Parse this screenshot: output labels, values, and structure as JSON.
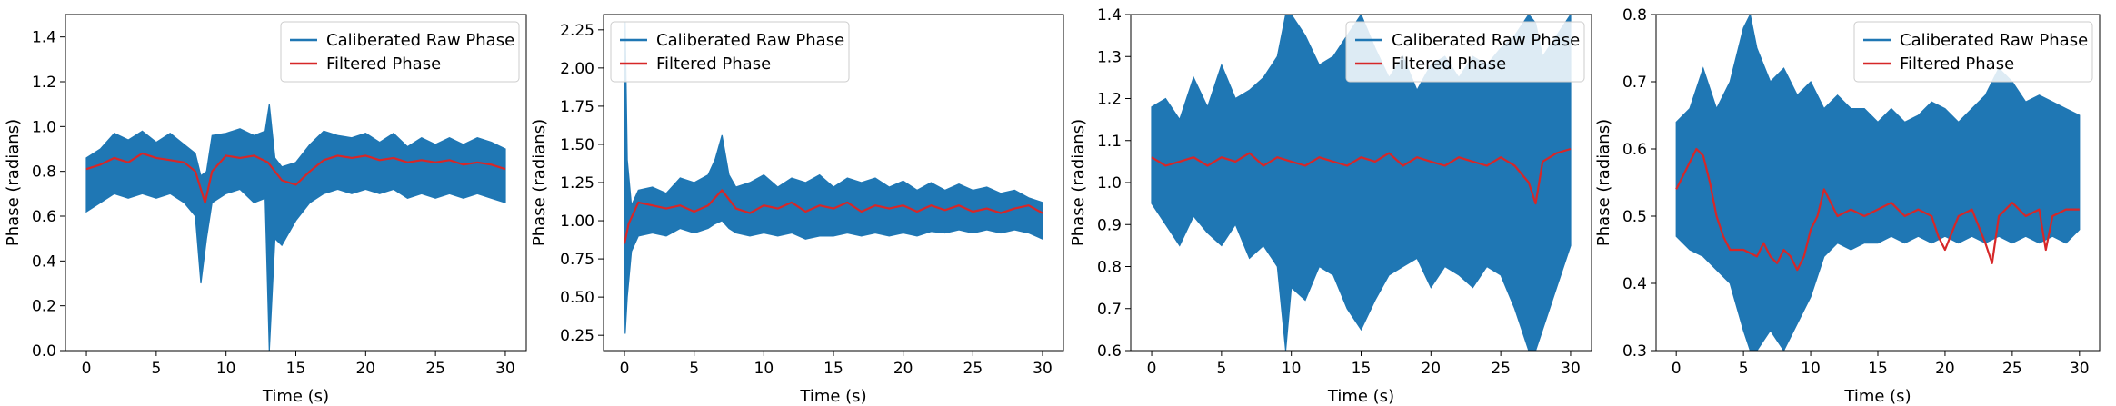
{
  "chart_data": [
    {
      "type": "line",
      "xlabel": "Time (s)",
      "ylabel": "Phase (radians)",
      "xlim": [
        -1.5,
        31.5
      ],
      "ylim": [
        0.0,
        1.5
      ],
      "xticks": [
        0,
        5,
        10,
        15,
        20,
        25,
        30
      ],
      "yticks": [
        0.0,
        0.2,
        0.4,
        0.6,
        0.8,
        1.0,
        1.2,
        1.4
      ],
      "ytick_labels": [
        "0.0",
        "0.2",
        "0.4",
        "0.6",
        "0.8",
        "1.0",
        "1.2",
        "1.4"
      ],
      "legend": {
        "placement": "top-right",
        "entries": [
          "Caliberated Raw Phase",
          "Filtered Phase"
        ]
      },
      "series": [
        {
          "name": "Caliberated Raw Phase",
          "color": "#1f77b4",
          "kind": "band",
          "x": [
            0,
            1,
            2,
            3,
            4,
            5,
            6,
            7,
            7.8,
            8.2,
            8.6,
            9,
            10,
            11,
            12,
            12.8,
            13.1,
            13.5,
            14,
            15,
            16,
            17,
            18,
            19,
            20,
            21,
            22,
            23,
            24,
            25,
            26,
            27,
            28,
            29,
            30
          ],
          "upper": [
            0.86,
            0.9,
            0.97,
            0.94,
            0.98,
            0.93,
            0.97,
            0.92,
            0.88,
            0.78,
            0.8,
            0.96,
            0.97,
            0.99,
            0.96,
            0.98,
            1.1,
            0.86,
            0.82,
            0.84,
            0.92,
            0.98,
            0.96,
            0.95,
            0.97,
            0.93,
            0.97,
            0.91,
            0.95,
            0.92,
            0.95,
            0.92,
            0.95,
            0.93,
            0.9
          ],
          "lower": [
            0.62,
            0.66,
            0.7,
            0.68,
            0.7,
            0.68,
            0.7,
            0.66,
            0.6,
            0.3,
            0.5,
            0.66,
            0.7,
            0.72,
            0.66,
            0.68,
            0.0,
            0.5,
            0.47,
            0.58,
            0.66,
            0.7,
            0.72,
            0.7,
            0.72,
            0.7,
            0.72,
            0.68,
            0.7,
            0.68,
            0.7,
            0.68,
            0.7,
            0.68,
            0.66
          ]
        },
        {
          "name": "Filtered Phase",
          "color": "#d62728",
          "kind": "line",
          "x": [
            0,
            1,
            2,
            3,
            4,
            5,
            6,
            7,
            7.8,
            8.5,
            9,
            10,
            11,
            12,
            13,
            14,
            15,
            16,
            17,
            18,
            19,
            20,
            21,
            22,
            23,
            24,
            25,
            26,
            27,
            28,
            29,
            30
          ],
          "values": [
            0.81,
            0.83,
            0.86,
            0.84,
            0.88,
            0.86,
            0.85,
            0.84,
            0.8,
            0.66,
            0.8,
            0.87,
            0.86,
            0.87,
            0.84,
            0.76,
            0.74,
            0.8,
            0.85,
            0.87,
            0.86,
            0.87,
            0.85,
            0.86,
            0.84,
            0.85,
            0.84,
            0.85,
            0.83,
            0.84,
            0.83,
            0.81
          ]
        }
      ]
    },
    {
      "type": "line",
      "xlabel": "Time (s)",
      "ylabel": "Phase (radians)",
      "xlim": [
        -1.5,
        31.5
      ],
      "ylim": [
        0.15,
        2.35
      ],
      "xticks": [
        0,
        5,
        10,
        15,
        20,
        25,
        30
      ],
      "yticks": [
        0.25,
        0.5,
        0.75,
        1.0,
        1.25,
        1.5,
        1.75,
        2.0,
        2.25
      ],
      "ytick_labels": [
        "0.25",
        "0.50",
        "0.75",
        "1.00",
        "1.25",
        "1.50",
        "1.75",
        "2.00",
        "2.25"
      ],
      "legend": {
        "placement": "top-left",
        "entries": [
          "Caliberated Raw Phase",
          "Filtered Phase"
        ]
      },
      "series": [
        {
          "name": "Caliberated Raw Phase",
          "color": "#1f77b4",
          "kind": "band",
          "x": [
            0,
            0.05,
            0.2,
            0.5,
            1,
            2,
            3,
            4,
            5,
            6,
            6.5,
            7,
            7.5,
            8,
            9,
            10,
            11,
            12,
            13,
            14,
            15,
            16,
            17,
            18,
            19,
            20,
            21,
            22,
            23,
            24,
            25,
            26,
            27,
            28,
            29,
            30
          ],
          "upper": [
            1.0,
            2.3,
            1.4,
            1.1,
            1.2,
            1.22,
            1.18,
            1.28,
            1.25,
            1.3,
            1.4,
            1.56,
            1.3,
            1.22,
            1.25,
            1.3,
            1.22,
            1.28,
            1.25,
            1.3,
            1.22,
            1.28,
            1.25,
            1.28,
            1.22,
            1.26,
            1.2,
            1.25,
            1.2,
            1.24,
            1.2,
            1.22,
            1.18,
            1.2,
            1.15,
            1.12
          ],
          "lower": [
            0.8,
            0.26,
            0.5,
            0.8,
            0.9,
            0.92,
            0.9,
            0.95,
            0.92,
            0.95,
            0.98,
            1.0,
            0.95,
            0.92,
            0.9,
            0.92,
            0.9,
            0.92,
            0.88,
            0.9,
            0.9,
            0.92,
            0.9,
            0.92,
            0.9,
            0.92,
            0.9,
            0.93,
            0.92,
            0.94,
            0.92,
            0.94,
            0.92,
            0.94,
            0.92,
            0.88
          ]
        },
        {
          "name": "Filtered Phase",
          "color": "#d62728",
          "kind": "line",
          "x": [
            0,
            0.3,
            0.7,
            1,
            2,
            3,
            4,
            5,
            6,
            7,
            8,
            9,
            10,
            11,
            12,
            13,
            14,
            15,
            16,
            17,
            18,
            19,
            20,
            21,
            22,
            23,
            24,
            25,
            26,
            27,
            28,
            29,
            30
          ],
          "values": [
            0.85,
            0.98,
            1.06,
            1.12,
            1.1,
            1.08,
            1.1,
            1.06,
            1.1,
            1.2,
            1.08,
            1.05,
            1.1,
            1.08,
            1.12,
            1.06,
            1.1,
            1.08,
            1.12,
            1.06,
            1.1,
            1.08,
            1.1,
            1.06,
            1.1,
            1.07,
            1.1,
            1.06,
            1.08,
            1.05,
            1.08,
            1.1,
            1.05
          ]
        }
      ]
    },
    {
      "type": "line",
      "xlabel": "Time (s)",
      "ylabel": "Phase (radians)",
      "xlim": [
        -1.5,
        31.5
      ],
      "ylim": [
        0.6,
        1.4
      ],
      "xticks": [
        0,
        5,
        10,
        15,
        20,
        25,
        30
      ],
      "yticks": [
        0.6,
        0.7,
        0.8,
        0.9,
        1.0,
        1.1,
        1.2,
        1.3,
        1.4
      ],
      "ytick_labels": [
        "0.6",
        "0.7",
        "0.8",
        "0.9",
        "1.0",
        "1.1",
        "1.2",
        "1.3",
        "1.4"
      ],
      "legend": {
        "placement": "top-right",
        "entries": [
          "Caliberated Raw Phase",
          "Filtered Phase"
        ]
      },
      "series": [
        {
          "name": "Caliberated Raw Phase",
          "color": "#1f77b4",
          "kind": "band",
          "x": [
            0,
            1,
            2,
            3,
            4,
            5,
            6,
            7,
            8,
            9,
            9.6,
            10,
            11,
            12,
            13,
            14,
            15,
            16,
            17,
            18,
            19,
            20,
            21,
            22,
            23,
            24,
            25,
            26,
            27,
            27.5,
            28,
            29,
            30
          ],
          "upper": [
            1.18,
            1.2,
            1.15,
            1.25,
            1.18,
            1.28,
            1.2,
            1.22,
            1.25,
            1.3,
            1.4,
            1.4,
            1.35,
            1.28,
            1.3,
            1.35,
            1.4,
            1.32,
            1.25,
            1.3,
            1.22,
            1.28,
            1.3,
            1.25,
            1.3,
            1.28,
            1.32,
            1.35,
            1.4,
            1.38,
            1.3,
            1.35,
            1.4
          ],
          "lower": [
            0.95,
            0.9,
            0.85,
            0.92,
            0.88,
            0.85,
            0.9,
            0.82,
            0.85,
            0.8,
            0.6,
            0.75,
            0.72,
            0.8,
            0.78,
            0.7,
            0.65,
            0.72,
            0.78,
            0.8,
            0.82,
            0.75,
            0.8,
            0.78,
            0.75,
            0.8,
            0.78,
            0.7,
            0.6,
            0.6,
            0.65,
            0.75,
            0.85
          ]
        },
        {
          "name": "Filtered Phase",
          "color": "#d62728",
          "kind": "line",
          "x": [
            0,
            1,
            2,
            3,
            4,
            5,
            6,
            7,
            8,
            9,
            10,
            11,
            12,
            13,
            14,
            15,
            16,
            17,
            18,
            19,
            20,
            21,
            22,
            23,
            24,
            25,
            26,
            27,
            27.5,
            28,
            29,
            30
          ],
          "values": [
            1.06,
            1.04,
            1.05,
            1.06,
            1.04,
            1.06,
            1.05,
            1.07,
            1.04,
            1.06,
            1.05,
            1.04,
            1.06,
            1.05,
            1.04,
            1.06,
            1.05,
            1.07,
            1.04,
            1.06,
            1.05,
            1.04,
            1.06,
            1.05,
            1.04,
            1.06,
            1.04,
            1.0,
            0.95,
            1.05,
            1.07,
            1.08
          ]
        }
      ]
    },
    {
      "type": "line",
      "xlabel": "Time (s)",
      "ylabel": "Phase (radians)",
      "xlim": [
        -1.5,
        31.5
      ],
      "ylim": [
        0.3,
        0.8
      ],
      "xticks": [
        0,
        5,
        10,
        15,
        20,
        25,
        30
      ],
      "yticks": [
        0.3,
        0.4,
        0.5,
        0.6,
        0.7,
        0.8
      ],
      "ytick_labels": [
        "0.3",
        "0.4",
        "0.5",
        "0.6",
        "0.7",
        "0.8"
      ],
      "legend": {
        "placement": "top-right",
        "entries": [
          "Caliberated Raw Phase",
          "Filtered Phase"
        ]
      },
      "series": [
        {
          "name": "Caliberated Raw Phase",
          "color": "#1f77b4",
          "kind": "band",
          "x": [
            0,
            1,
            2,
            3,
            4,
            5,
            5.5,
            6,
            7,
            8,
            9,
            10,
            11,
            12,
            13,
            14,
            15,
            16,
            17,
            18,
            19,
            20,
            21,
            22,
            23,
            24,
            25,
            26,
            27,
            28,
            29,
            30
          ],
          "upper": [
            0.64,
            0.66,
            0.72,
            0.66,
            0.7,
            0.78,
            0.8,
            0.75,
            0.7,
            0.72,
            0.68,
            0.7,
            0.66,
            0.68,
            0.66,
            0.66,
            0.64,
            0.66,
            0.64,
            0.65,
            0.67,
            0.66,
            0.64,
            0.66,
            0.68,
            0.72,
            0.7,
            0.67,
            0.68,
            0.67,
            0.66,
            0.65
          ],
          "lower": [
            0.47,
            0.45,
            0.44,
            0.42,
            0.4,
            0.33,
            0.3,
            0.3,
            0.33,
            0.3,
            0.34,
            0.38,
            0.44,
            0.46,
            0.45,
            0.46,
            0.46,
            0.47,
            0.46,
            0.47,
            0.46,
            0.47,
            0.46,
            0.47,
            0.46,
            0.47,
            0.46,
            0.47,
            0.46,
            0.47,
            0.46,
            0.48
          ]
        },
        {
          "name": "Filtered Phase",
          "color": "#d62728",
          "kind": "line",
          "x": [
            0,
            0.5,
            1,
            1.5,
            2,
            2.5,
            3,
            3.5,
            4,
            5,
            6,
            6.5,
            7,
            7.5,
            8,
            8.5,
            9,
            9.5,
            10,
            10.5,
            11,
            12,
            13,
            14,
            15,
            16,
            17,
            18,
            19,
            19.5,
            20,
            21,
            22,
            23,
            23.5,
            24,
            25,
            26,
            27,
            27.5,
            28,
            29,
            30
          ],
          "values": [
            0.54,
            0.56,
            0.58,
            0.6,
            0.59,
            0.55,
            0.5,
            0.47,
            0.45,
            0.45,
            0.44,
            0.46,
            0.44,
            0.43,
            0.45,
            0.44,
            0.42,
            0.44,
            0.48,
            0.5,
            0.54,
            0.5,
            0.51,
            0.5,
            0.51,
            0.52,
            0.5,
            0.51,
            0.5,
            0.47,
            0.45,
            0.5,
            0.51,
            0.46,
            0.43,
            0.5,
            0.52,
            0.5,
            0.51,
            0.45,
            0.5,
            0.51,
            0.51
          ]
        }
      ]
    }
  ]
}
